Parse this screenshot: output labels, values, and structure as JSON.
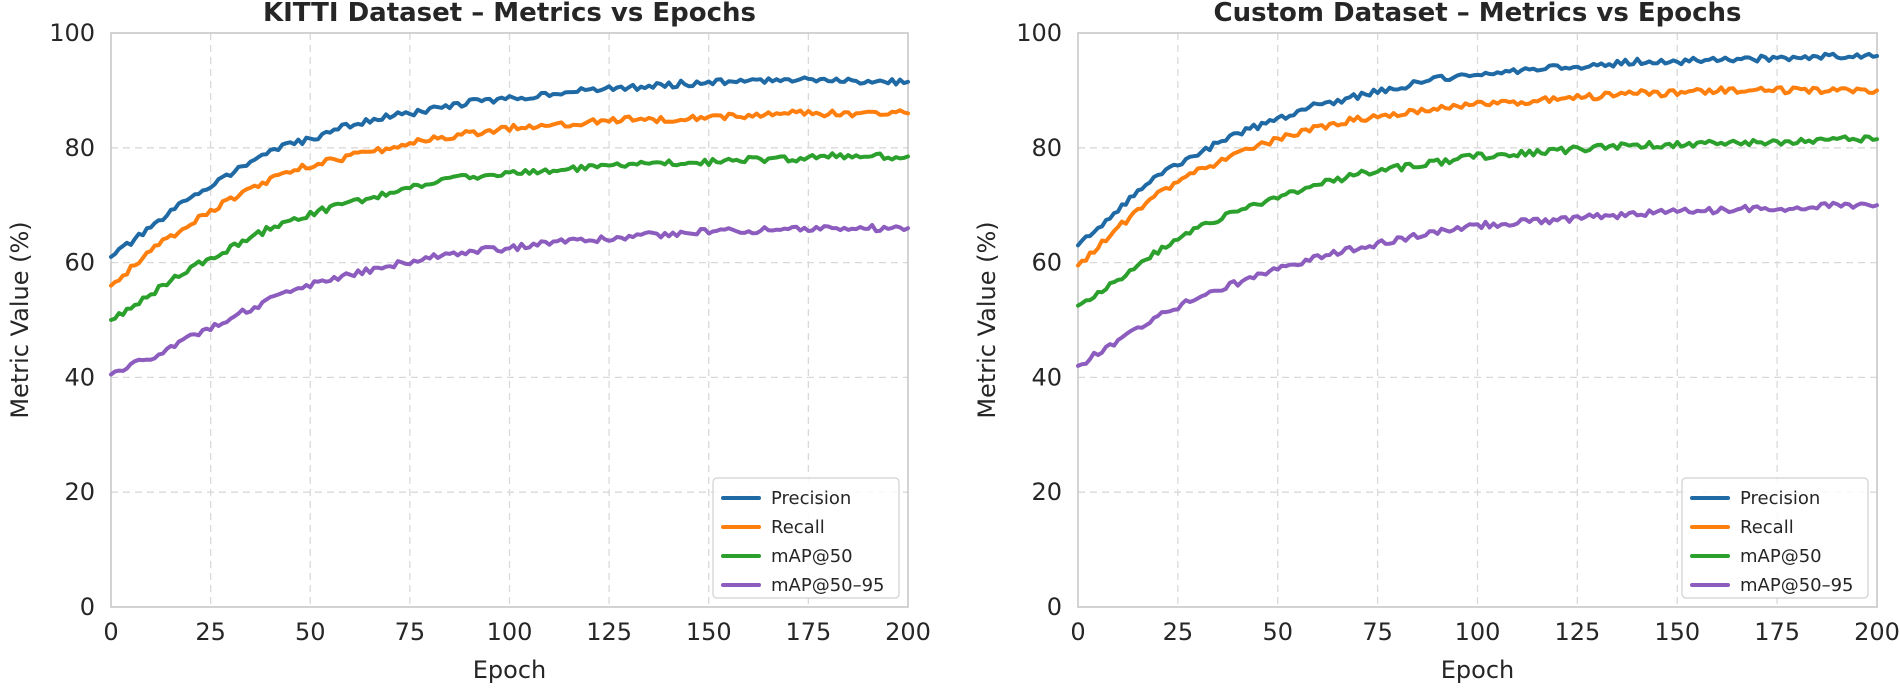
{
  "chart_data": [
    {
      "type": "line",
      "title": "KITTI Dataset – Metrics vs Epochs",
      "xlabel": "Epoch",
      "ylabel": "Metric Value (%)",
      "xlim": [
        0,
        200
      ],
      "ylim": [
        0,
        100
      ],
      "xticks": [
        0,
        25,
        50,
        75,
        100,
        125,
        150,
        175,
        200
      ],
      "yticks": [
        0,
        20,
        40,
        60,
        80,
        100
      ],
      "xtick_labels": [
        "0",
        "25",
        "50",
        "75",
        "100",
        "125",
        "150",
        "175",
        "200"
      ],
      "ytick_labels": [
        "0",
        "20",
        "40",
        "60",
        "80",
        "100"
      ],
      "grid": true,
      "legend_position": "lower right",
      "x": [
        0,
        10,
        20,
        30,
        40,
        50,
        60,
        70,
        80,
        90,
        100,
        110,
        120,
        130,
        140,
        150,
        160,
        170,
        180,
        190,
        200
      ],
      "series": [
        {
          "name": "Precision",
          "color": "#1f6aa5",
          "values": [
            61,
            66,
            71.5,
            75.5,
            79.5,
            81.5,
            84,
            85.5,
            86.5,
            88,
            88.5,
            89.5,
            90,
            90.5,
            91,
            91.5,
            91.5,
            92,
            92,
            91.5,
            91.5
          ]
        },
        {
          "name": "Recall",
          "color": "#ff7f0e",
          "values": [
            56,
            62,
            67,
            71,
            74.5,
            77,
            78.5,
            80,
            81.5,
            82.5,
            83.5,
            84,
            84.5,
            85,
            85,
            85.5,
            85.5,
            86,
            86,
            86,
            86
          ]
        },
        {
          "name": "mAP@50",
          "color": "#2ca02c",
          "values": [
            50,
            54.5,
            59,
            62.5,
            66,
            68.5,
            70.5,
            72,
            74,
            75,
            75.5,
            76,
            76.5,
            77,
            77.5,
            77.5,
            78,
            78,
            78.5,
            78.5,
            78.5
          ]
        },
        {
          "name": "mAP@50–95",
          "color": "#8c5cbf",
          "values": [
            40.5,
            43.5,
            47,
            50.5,
            53.5,
            56,
            58,
            59.5,
            61,
            62,
            62.5,
            63.5,
            64,
            64.5,
            65,
            65.5,
            65.5,
            66,
            66,
            66,
            66
          ]
        }
      ]
    },
    {
      "type": "line",
      "title": "Custom Dataset – Metrics vs Epochs",
      "xlabel": "Epoch",
      "ylabel": "Metric Value (%)",
      "xlim": [
        0,
        200
      ],
      "ylim": [
        0,
        100
      ],
      "xticks": [
        0,
        25,
        50,
        75,
        100,
        125,
        150,
        175,
        200
      ],
      "yticks": [
        0,
        20,
        40,
        60,
        80,
        100
      ],
      "xtick_labels": [
        "0",
        "25",
        "50",
        "75",
        "100",
        "125",
        "150",
        "175",
        "200"
      ],
      "ytick_labels": [
        "0",
        "20",
        "40",
        "60",
        "80",
        "100"
      ],
      "grid": true,
      "legend_position": "lower right",
      "x": [
        0,
        10,
        20,
        30,
        40,
        50,
        60,
        70,
        80,
        90,
        100,
        110,
        120,
        130,
        140,
        150,
        160,
        170,
        180,
        190,
        200
      ],
      "series": [
        {
          "name": "Precision",
          "color": "#1f6aa5",
          "values": [
            63,
            69,
            75.5,
            79,
            82.5,
            85,
            87.5,
            89,
            90.5,
            92,
            92.5,
            93.5,
            94,
            94.5,
            95,
            95,
            95.5,
            95.5,
            95.5,
            96,
            96
          ]
        },
        {
          "name": "Recall",
          "color": "#ff7f0e",
          "values": [
            59.5,
            66,
            72,
            76,
            79,
            81.5,
            83.5,
            85,
            86,
            87,
            87.5,
            88,
            88.5,
            89,
            89.5,
            89.5,
            90,
            90,
            90,
            90,
            90
          ]
        },
        {
          "name": "mAP@50",
          "color": "#2ca02c",
          "values": [
            52.5,
            57,
            62,
            66,
            69,
            71.5,
            73.5,
            75.5,
            76.5,
            77.5,
            78.5,
            79,
            79.5,
            80,
            80.5,
            80.5,
            81,
            81,
            81,
            81.5,
            81.5
          ]
        },
        {
          "name": "mAP@50–95",
          "color": "#8c5cbf",
          "values": [
            42,
            46.5,
            50.5,
            54,
            56.5,
            59,
            61,
            62.5,
            64,
            65.5,
            66.5,
            67,
            67.5,
            68,
            68.5,
            69,
            69,
            69.5,
            69.5,
            70,
            70
          ]
        }
      ]
    }
  ]
}
